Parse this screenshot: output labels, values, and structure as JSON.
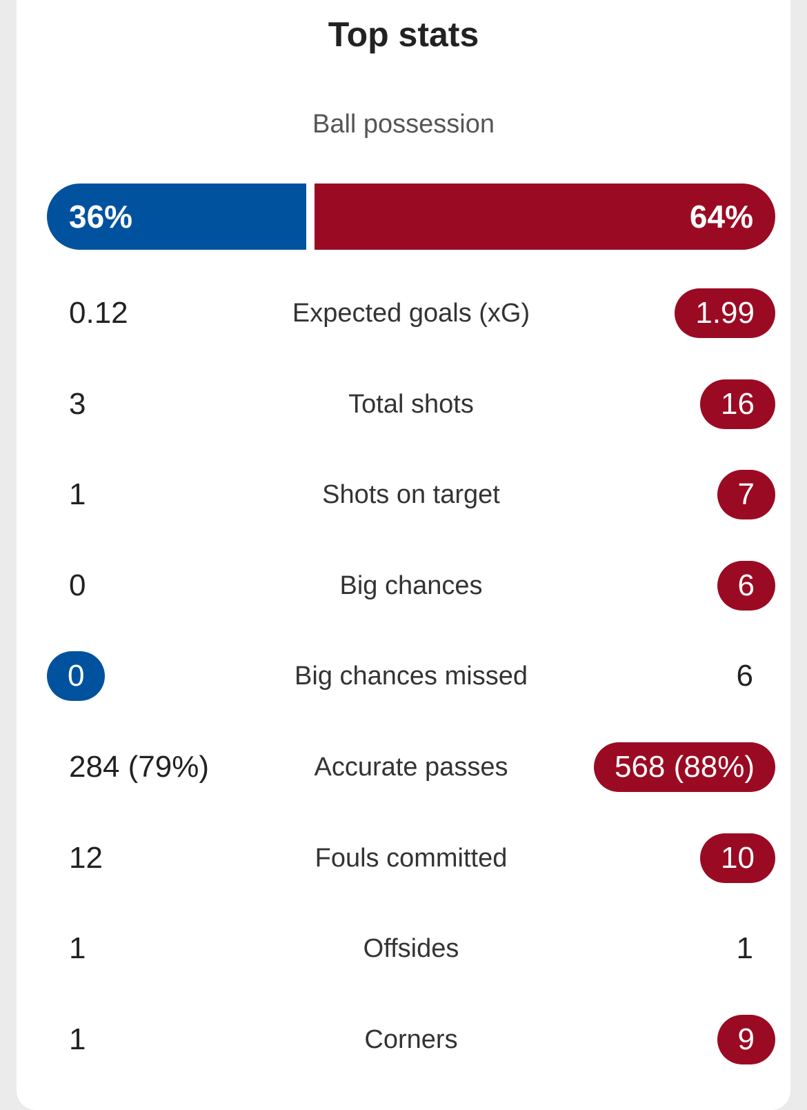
{
  "title": "Top stats",
  "possession": {
    "label": "Ball possession",
    "home": "36%",
    "away": "64%",
    "home_fraction": 0.36,
    "away_fraction": 0.64
  },
  "colors": {
    "home": "#00529f",
    "away": "#9b0a23"
  },
  "stats": [
    {
      "label": "Expected goals (xG)",
      "home": "0.12",
      "away": "1.99",
      "highlight": "away"
    },
    {
      "label": "Total shots",
      "home": "3",
      "away": "16",
      "highlight": "away"
    },
    {
      "label": "Shots on target",
      "home": "1",
      "away": "7",
      "highlight": "away"
    },
    {
      "label": "Big chances",
      "home": "0",
      "away": "6",
      "highlight": "away"
    },
    {
      "label": "Big chances missed",
      "home": "0",
      "away": "6",
      "highlight": "home"
    },
    {
      "label": "Accurate passes",
      "home": "284 (79%)",
      "away": "568 (88%)",
      "highlight": "away"
    },
    {
      "label": "Fouls committed",
      "home": "12",
      "away": "10",
      "highlight": "away"
    },
    {
      "label": "Offsides",
      "home": "1",
      "away": "1",
      "highlight": "none"
    },
    {
      "label": "Corners",
      "home": "1",
      "away": "9",
      "highlight": "away"
    }
  ]
}
